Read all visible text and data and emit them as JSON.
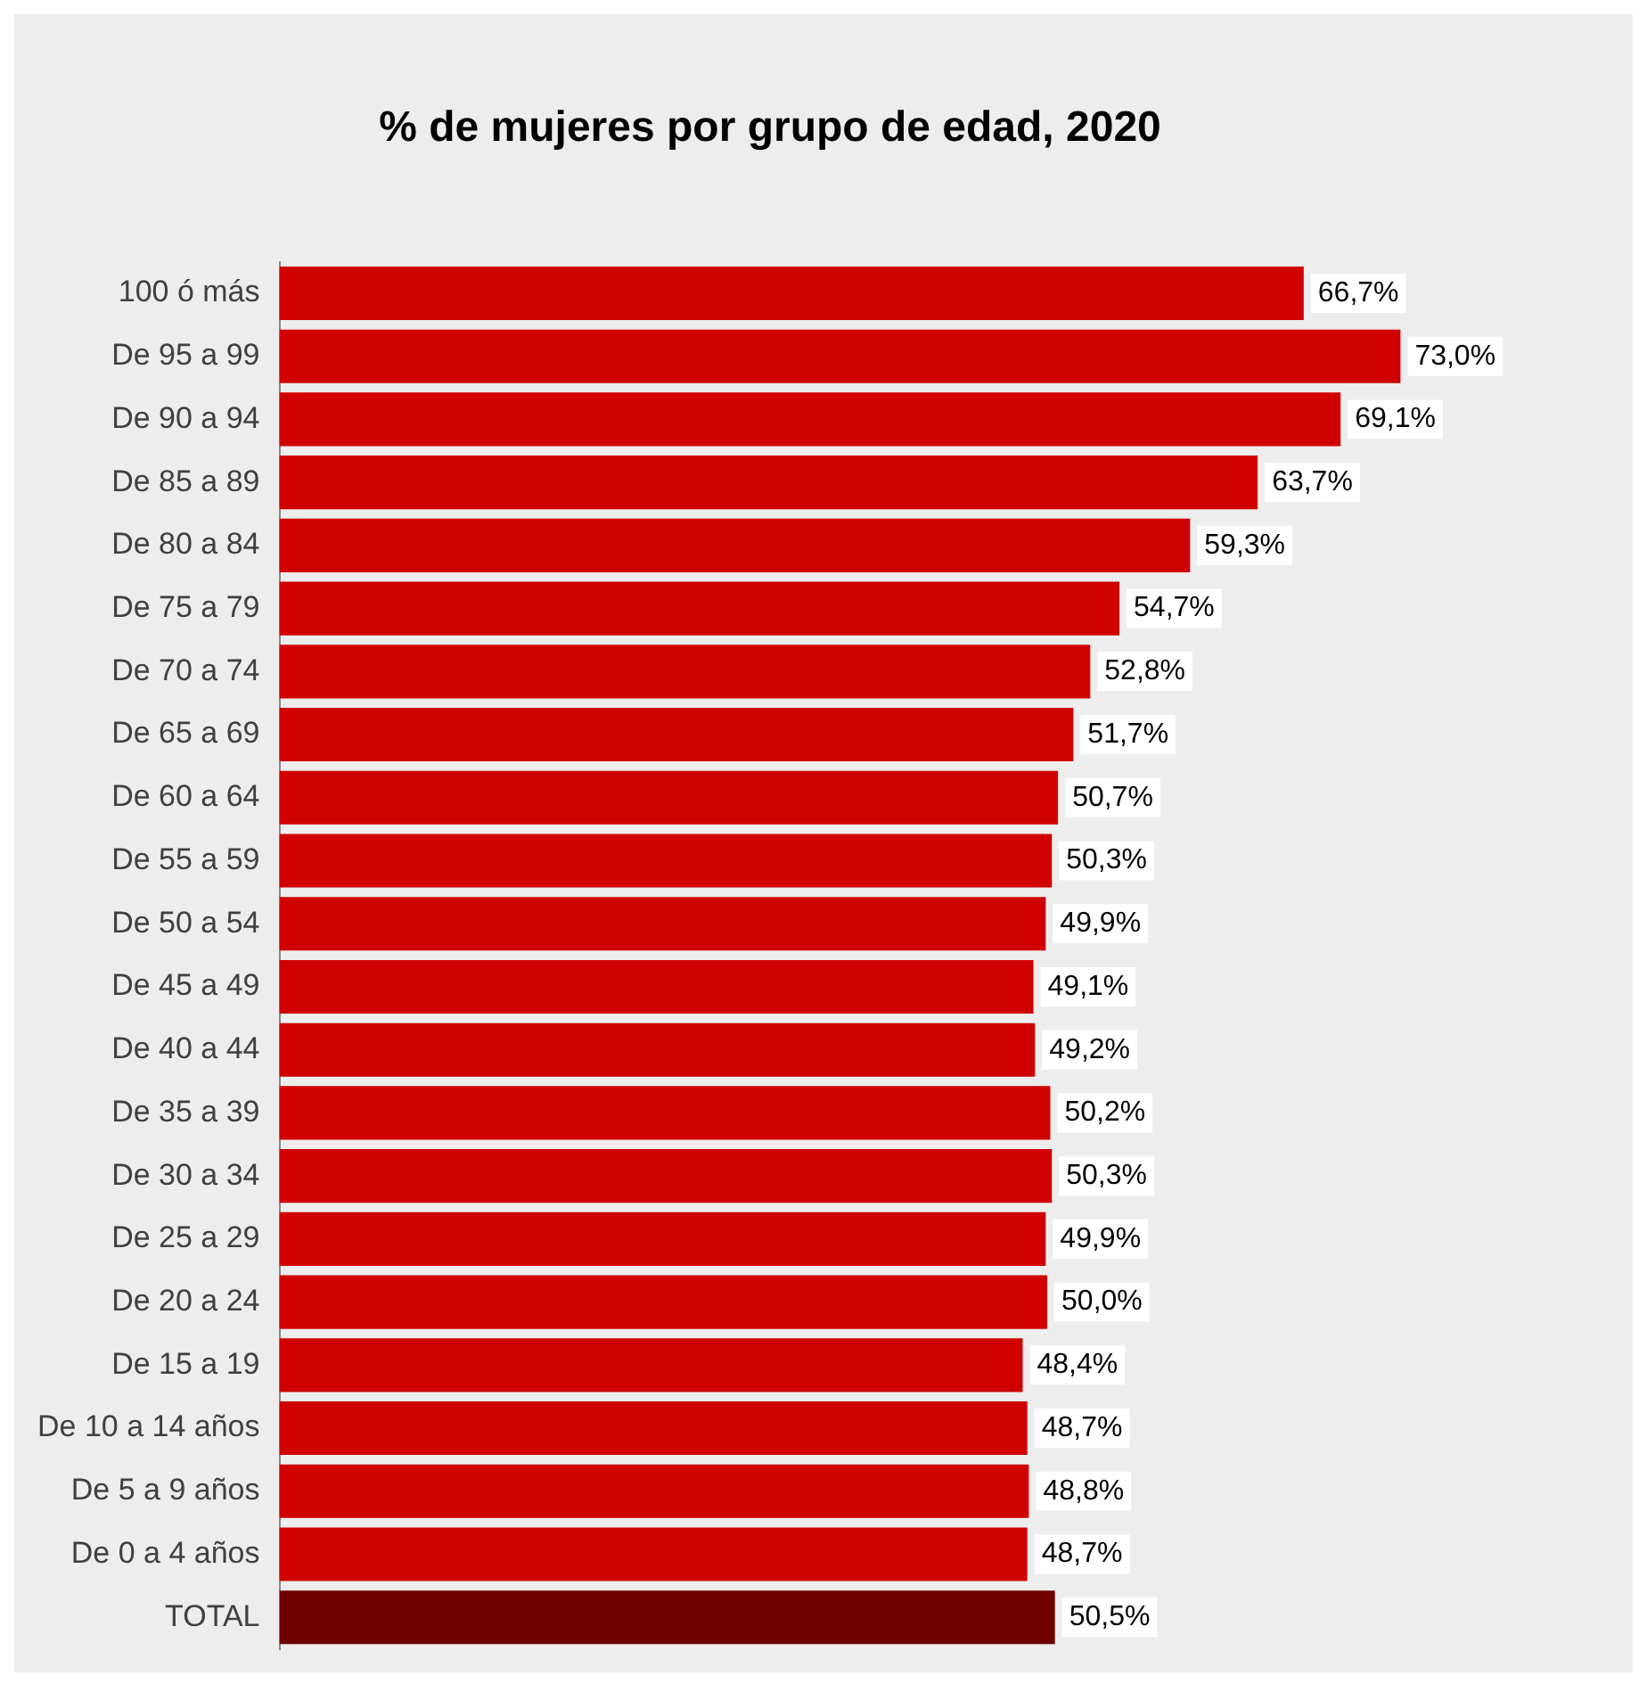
{
  "chart_data": {
    "type": "bar",
    "orientation": "horizontal",
    "title": "% de mujeres por grupo de edad, 2020",
    "categories": [
      "100 ó más",
      "De 95 a 99",
      "De 90 a 94",
      "De 85 a 89",
      "De 80 a 84",
      "De 75 a 79",
      "De 70 a 74",
      "De 65 a 69",
      "De 60 a 64",
      "De 55 a 59",
      "De 50 a 54",
      "De 45 a 49",
      "De 40 a 44",
      "De 35 a 39",
      "De 30 a 34",
      "De 25 a 29",
      "De 20 a 24",
      "De 15 a 19",
      "De 10 a 14 años",
      "De 5 a 9 años",
      "De 0 a 4 años",
      "TOTAL"
    ],
    "values": [
      66.7,
      73.0,
      69.1,
      63.7,
      59.3,
      54.7,
      52.8,
      51.7,
      50.7,
      50.3,
      49.9,
      49.1,
      49.2,
      50.2,
      50.3,
      49.9,
      50.0,
      48.4,
      48.7,
      48.8,
      48.7,
      50.5
    ],
    "value_labels": [
      "66,7%",
      "73,0%",
      "69,1%",
      "63,7%",
      "59,3%",
      "54,7%",
      "52,8%",
      "51,7%",
      "50,7%",
      "50,3%",
      "49,9%",
      "49,1%",
      "49,2%",
      "50,2%",
      "50,3%",
      "49,9%",
      "50,0%",
      "48,4%",
      "48,7%",
      "48,8%",
      "48,7%",
      "50,5%"
    ],
    "colors": [
      "#d00000",
      "#d00000",
      "#d00000",
      "#d00000",
      "#d00000",
      "#d00000",
      "#d00000",
      "#d00000",
      "#d00000",
      "#d00000",
      "#d00000",
      "#d00000",
      "#d00000",
      "#d00000",
      "#d00000",
      "#d00000",
      "#d00000",
      "#d00000",
      "#d00000",
      "#d00000",
      "#d00000",
      "#6e0000"
    ],
    "legend": false
  }
}
